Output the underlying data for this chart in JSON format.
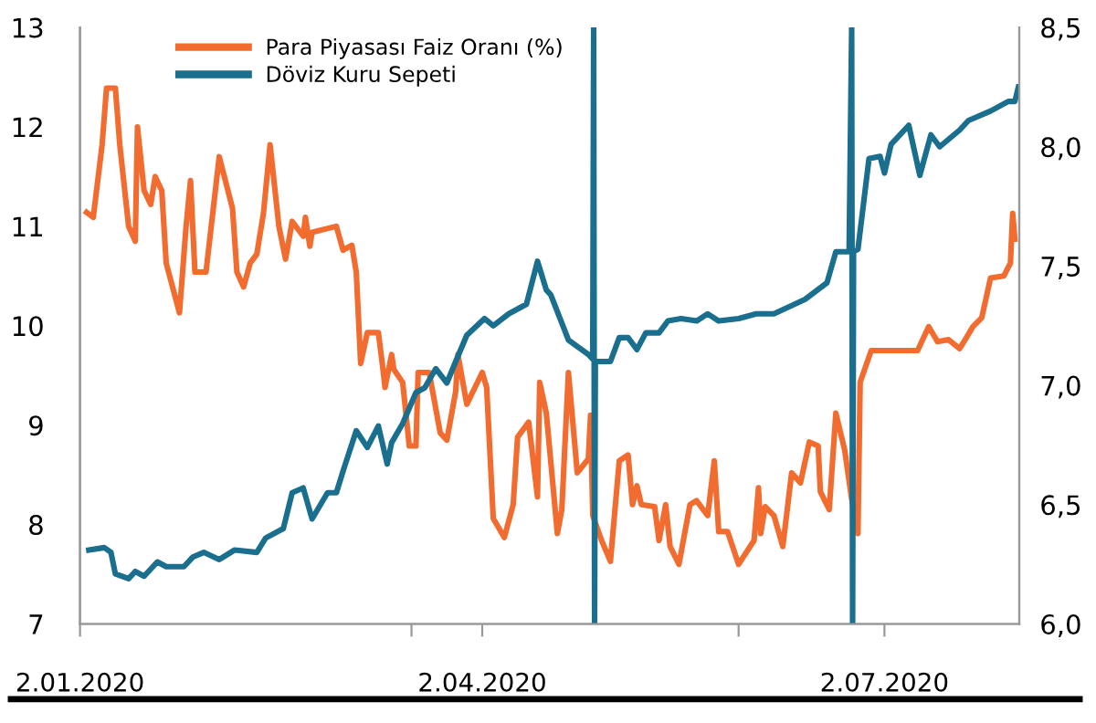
{
  "chart_data": {
    "type": "line",
    "xlim": [
      "2020-01-02",
      "2020-08-01T12:00"
    ],
    "xticks": [
      {
        "value": "2020-01-02",
        "label": "2.01.2020"
      },
      {
        "value": "2020-03-17",
        "label": null
      },
      {
        "value": "2020-04-02",
        "label": "2.04.2020"
      },
      {
        "value": "2020-05-30",
        "label": null
      },
      {
        "value": "2020-07-02",
        "label": "2.07.2020"
      }
    ],
    "ylim": [
      7,
      13
    ],
    "yticks": [
      7,
      8,
      9,
      10,
      11,
      12,
      13
    ],
    "y2lim": [
      6.0,
      8.5
    ],
    "y2ticks": [
      {
        "value": 6.0,
        "label": "6,0"
      },
      {
        "value": 6.5,
        "label": "6,5"
      },
      {
        "value": 7.0,
        "label": "7,0"
      },
      {
        "value": 7.5,
        "label": "7,5"
      },
      {
        "value": 8.0,
        "label": "8,0"
      },
      {
        "value": 8.5,
        "label": "8,5"
      }
    ],
    "legend": "top",
    "grid": false,
    "series": [
      {
        "name": "Para Piyasası Faiz Oranı (%)",
        "color": "#f26b2f",
        "x": [
          "2020-01-03T12:00",
          "2020-01-05",
          "2020-01-07",
          "2020-01-08",
          "2020-01-10",
          "2020-01-11",
          "2020-01-13",
          "2020-01-14T12:00",
          "2020-01-15",
          "2020-01-16T12:00",
          "2020-01-18",
          "2020-01-19",
          "2020-01-20T12:00",
          "2020-01-21T12:00",
          "2020-01-24T12:00",
          "2020-01-26",
          "2020-01-27",
          "2020-01-28",
          "2020-01-30T12:00",
          "2020-02-02T12:00",
          "2020-02-05T12:00",
          "2020-02-06T12:00",
          "2020-02-08",
          "2020-02-09T12:00",
          "2020-02-11",
          "2020-02-12T12:00",
          "2020-02-14",
          "2020-02-16",
          "2020-02-17T12:00",
          "2020-02-19",
          "2020-02-21T12:00",
          "2020-02-22",
          "2020-02-23",
          "2020-02-23T12:00",
          "2020-02-29",
          "2020-03-01T12:00",
          "2020-03-03T12:00",
          "2020-03-04T12:00",
          "2020-03-05T12:00",
          "2020-03-07",
          "2020-03-09T12:00",
          "2020-03-10T12:00",
          "2020-03-11",
          "2020-03-12T12:00",
          "2020-03-13",
          "2020-03-15",
          "2020-03-16T12:00",
          "2020-03-18",
          "2020-03-18T12:00",
          "2020-03-21",
          "2020-03-23T12:00",
          "2020-03-25",
          "2020-03-27",
          "2020-03-27T12:00",
          "2020-03-29T12:00",
          "2020-04-02",
          "2020-04-03",
          "2020-04-04T12:00",
          "2020-04-07",
          "2020-04-09",
          "2020-04-10",
          "2020-04-12T12:00",
          "2020-04-14T12:00",
          "2020-04-15",
          "2020-04-16T12:00",
          "2020-04-19",
          "2020-04-20",
          "2020-04-21T12:00",
          "2020-04-23T12:00",
          "2020-04-26",
          "2020-04-26T12:00",
          "2020-04-27",
          "2020-04-29",
          "2020-05-01",
          "2020-05-03",
          "2020-05-05",
          "2020-05-06",
          "2020-05-07",
          "2020-05-08",
          "2020-05-11",
          "2020-05-12",
          "2020-05-13T12:00",
          "2020-05-14T12:00",
          "2020-05-16T12:00",
          "2020-05-19",
          "2020-05-20T12:00",
          "2020-05-23",
          "2020-05-24T12:00",
          "2020-05-25T12:00",
          "2020-05-27T12:00",
          "2020-05-30",
          "2020-06-02T12:00",
          "2020-06-03T12:00",
          "2020-06-04",
          "2020-06-05",
          "2020-06-07",
          "2020-06-09",
          "2020-06-11",
          "2020-06-13",
          "2020-06-15",
          "2020-06-17",
          "2020-06-17T12:00",
          "2020-06-19T12:00",
          "2020-06-21",
          "2020-06-23",
          "2020-06-24T12:00",
          "2020-06-26",
          "2020-06-26T12:00",
          "2020-06-29",
          "2020-07-09T12:00",
          "2020-07-12",
          "2020-07-14",
          "2020-07-16T12:00",
          "2020-07-19",
          "2020-07-20",
          "2020-07-22",
          "2020-07-24",
          "2020-07-26",
          "2020-07-29",
          "2020-07-30T12:00",
          "2020-07-31",
          "2020-07-31T12:00"
        ],
        "values": [
          11.14,
          11.09,
          11.82,
          12.39,
          12.39,
          11.82,
          11.0,
          10.85,
          12.0,
          11.36,
          11.22,
          11.5,
          11.36,
          10.63,
          10.13,
          11.0,
          11.46,
          10.54,
          10.54,
          11.7,
          11.18,
          10.54,
          10.39,
          10.63,
          10.72,
          11.13,
          11.82,
          11.0,
          10.67,
          11.05,
          10.9,
          11.09,
          10.8,
          10.94,
          11.0,
          10.76,
          10.81,
          10.54,
          9.62,
          9.93,
          9.93,
          9.58,
          9.38,
          9.71,
          9.56,
          9.43,
          8.79,
          8.79,
          9.53,
          9.53,
          8.92,
          8.85,
          9.34,
          9.71,
          9.21,
          9.53,
          9.38,
          8.06,
          7.87,
          8.2,
          8.88,
          9.03,
          8.28,
          9.43,
          9.12,
          7.91,
          8.15,
          9.53,
          8.52,
          8.66,
          9.1,
          8.09,
          7.84,
          7.63,
          8.64,
          8.7,
          8.2,
          8.39,
          8.2,
          8.18,
          7.84,
          8.2,
          7.78,
          7.6,
          8.2,
          8.24,
          8.09,
          8.64,
          7.93,
          7.93,
          7.6,
          7.84,
          8.37,
          7.91,
          8.18,
          8.09,
          7.78,
          8.52,
          8.42,
          8.83,
          8.79,
          8.33,
          8.15,
          9.12,
          8.75,
          8.28,
          7.91,
          9.43,
          9.75,
          9.75,
          9.99,
          9.84,
          9.86,
          9.77,
          9.84,
          9.99,
          10.08,
          10.48,
          10.5,
          10.63,
          11.13,
          10.87
        ]
      },
      {
        "name": "Döviz Kuru Sepeti",
        "color": "#1a6e8e",
        "axis": "y2",
        "x": [
          "2020-01-04",
          "2020-01-07T12:00",
          "2020-01-09",
          "2020-01-10",
          "2020-01-13",
          "2020-01-14T12:00",
          "2020-01-16T12:00",
          "2020-01-19T12:00",
          "2020-01-21T12:00",
          "2020-01-25T12:00",
          "2020-01-27T12:00",
          "2020-01-30",
          "2020-02-02T12:00",
          "2020-02-06",
          "2020-02-11",
          "2020-02-13",
          "2020-02-17",
          "2020-02-19",
          "2020-02-21T12:00",
          "2020-02-23T12:00",
          "2020-02-27",
          "2020-02-29",
          "2020-03-01T12:00",
          "2020-03-04T12:00",
          "2020-03-07",
          "2020-03-09T12:00",
          "2020-03-11T12:00",
          "2020-03-12T12:00",
          "2020-03-15",
          "2020-03-18",
          "2020-03-20",
          "2020-03-22T12:00",
          "2020-03-25",
          "2020-03-27",
          "2020-03-29T12:00",
          "2020-04-02T12:00",
          "2020-04-04T12:00",
          "2020-04-08",
          "2020-04-12",
          "2020-04-14T12:00",
          "2020-04-16T12:00",
          "2020-04-17T12:00",
          "2020-04-21T12:00",
          "2020-04-26",
          "2020-04-27",
          "2020-04-27T05:00",
          "2020-04-27T10:00",
          "2020-04-27T14:00",
          "2020-05-01",
          "2020-05-03",
          "2020-05-05",
          "2020-05-07",
          "2020-05-09",
          "2020-05-12",
          "2020-05-14",
          "2020-05-17",
          "2020-05-20T12:00",
          "2020-05-23",
          "2020-05-25T12:00",
          "2020-05-30",
          "2020-06-03",
          "2020-06-07",
          "2020-06-14",
          "2020-06-19",
          "2020-06-21",
          "2020-06-24",
          "2020-06-24T14:00",
          "2020-06-24T19:00",
          "2020-06-25",
          "2020-06-26",
          "2020-06-28T12:00",
          "2020-07-01",
          "2020-07-02",
          "2020-07-03T12:00",
          "2020-07-07T12:00",
          "2020-07-10",
          "2020-07-12T12:00",
          "2020-07-14T12:00",
          "2020-07-19",
          "2020-07-21",
          "2020-07-26",
          "2020-07-30",
          "2020-07-31T12:00",
          "2020-08-01T07:00"
        ],
        "values": [
          6.31,
          6.32,
          6.3,
          6.21,
          6.19,
          6.22,
          6.2,
          6.26,
          6.24,
          6.24,
          6.28,
          6.3,
          6.27,
          6.31,
          6.3,
          6.36,
          6.4,
          6.55,
          6.57,
          6.44,
          6.55,
          6.55,
          6.64,
          6.81,
          6.74,
          6.83,
          6.67,
          6.76,
          6.84,
          6.97,
          6.99,
          7.07,
          7.01,
          7.1,
          7.21,
          7.28,
          7.25,
          7.3,
          7.34,
          7.52,
          7.4,
          7.38,
          7.19,
          7.13,
          7.11,
          8.5,
          6.0,
          7.1,
          7.1,
          7.2,
          7.2,
          7.15,
          7.22,
          7.22,
          7.27,
          7.28,
          7.27,
          7.3,
          7.27,
          7.28,
          7.3,
          7.3,
          7.36,
          7.43,
          7.56,
          7.56,
          8.5,
          6.0,
          7.56,
          7.57,
          7.95,
          7.96,
          7.89,
          8.01,
          8.09,
          7.88,
          8.05,
          8.0,
          8.07,
          8.11,
          8.15,
          8.19,
          8.19,
          8.25
        ]
      }
    ]
  }
}
